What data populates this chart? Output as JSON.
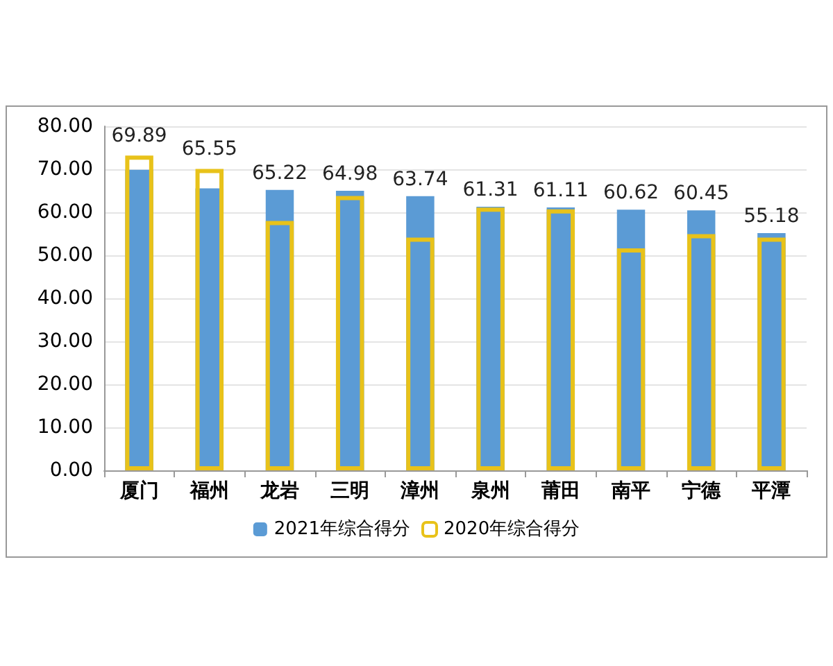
{
  "chart_data": {
    "type": "bar",
    "categories": [
      "厦门",
      "福州",
      "龙岩",
      "三明",
      "漳州",
      "泉州",
      "莆田",
      "南平",
      "宁德",
      "平潭"
    ],
    "series": [
      {
        "name": "2021年综合得分",
        "color": "#5b9bd5",
        "values": [
          69.89,
          65.55,
          65.22,
          64.98,
          63.74,
          61.31,
          61.11,
          60.62,
          60.45,
          55.18
        ],
        "value_labels": [
          "69.89",
          "65.55",
          "65.22",
          "64.98",
          "63.74",
          "61.31",
          "61.11",
          "60.62",
          "60.45",
          "55.18"
        ]
      },
      {
        "name": "2020年综合得分",
        "color": "#e8c21a",
        "values": [
          73.2,
          70.1,
          58.0,
          63.8,
          54.1,
          61.1,
          60.7,
          51.6,
          54.9,
          54.1
        ]
      }
    ],
    "ylim": [
      0,
      80
    ],
    "yticks": [
      {
        "value": 0,
        "label": "0.00"
      },
      {
        "value": 10,
        "label": "10.00"
      },
      {
        "value": 20,
        "label": "20.00"
      },
      {
        "value": 30,
        "label": "30.00"
      },
      {
        "value": 40,
        "label": "40.00"
      },
      {
        "value": 50,
        "label": "50.00"
      },
      {
        "value": 60,
        "label": "60.00"
      },
      {
        "value": 70,
        "label": "70.00"
      },
      {
        "value": 80,
        "label": "80.00"
      }
    ],
    "grid": "y",
    "legend": "bottom"
  }
}
